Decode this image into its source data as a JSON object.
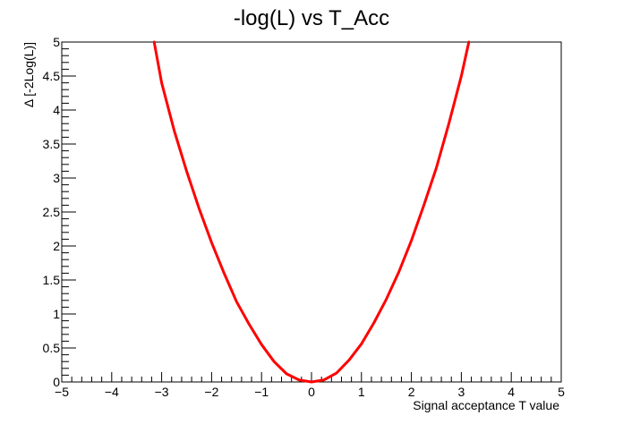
{
  "chart_data": {
    "type": "line",
    "title": "-log(L) vs T_Acc",
    "xlabel": "Signal acceptance T value",
    "ylabel": "Δ [-2Log(L)]",
    "xlim": [
      -5,
      5
    ],
    "ylim": [
      0,
      5
    ],
    "x_ticks": [
      "−5",
      "−4",
      "−3",
      "−2",
      "−1",
      "0",
      "1",
      "2",
      "3",
      "4",
      "5"
    ],
    "y_ticks": [
      "0",
      "0.5",
      "1",
      "1.5",
      "2",
      "2.5",
      "3",
      "3.5",
      "4",
      "4.5",
      "5"
    ],
    "grid": false,
    "series": [
      {
        "color": "#ff0000",
        "x": [
          -3.15,
          -3.0,
          -2.75,
          -2.5,
          -2.25,
          -2.0,
          -1.75,
          -1.5,
          -1.25,
          -1.0,
          -0.75,
          -0.5,
          -0.25,
          0.0,
          0.25,
          0.5,
          0.75,
          1.0,
          1.25,
          1.5,
          1.75,
          2.0,
          2.25,
          2.5,
          2.75,
          3.0,
          3.15
        ],
        "y": [
          5.0,
          4.4,
          3.7,
          3.1,
          2.55,
          2.05,
          1.6,
          1.18,
          0.85,
          0.55,
          0.3,
          0.12,
          0.03,
          0.0,
          0.03,
          0.13,
          0.32,
          0.56,
          0.87,
          1.22,
          1.62,
          2.08,
          2.6,
          3.15,
          3.8,
          4.5,
          5.0
        ]
      }
    ]
  }
}
